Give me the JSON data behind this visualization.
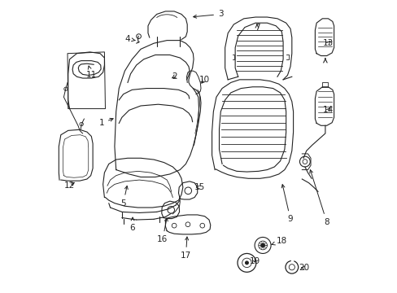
{
  "title": "",
  "background_color": "#ffffff",
  "figsize": [
    4.89,
    3.6
  ],
  "dpi": 100,
  "line_color": "#222222",
  "label_fontsize": 7.5
}
